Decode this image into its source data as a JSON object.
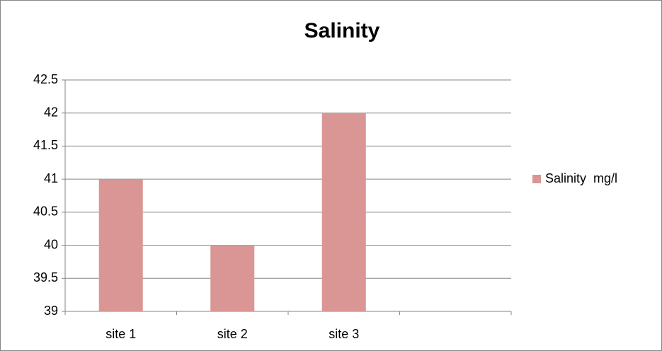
{
  "chart_data": {
    "type": "bar",
    "title": "Salinity",
    "categories": [
      "site 1",
      "site 2",
      "site 3",
      null
    ],
    "series": [
      {
        "name": "Salinity  mg/l",
        "color": "#d99694",
        "values": [
          41,
          40,
          42,
          null
        ]
      }
    ],
    "ylim": [
      39,
      42.5
    ],
    "yticks": [
      39,
      39.5,
      40,
      40.5,
      41,
      41.5,
      42,
      42.5
    ],
    "grid": true,
    "legend": "right"
  }
}
